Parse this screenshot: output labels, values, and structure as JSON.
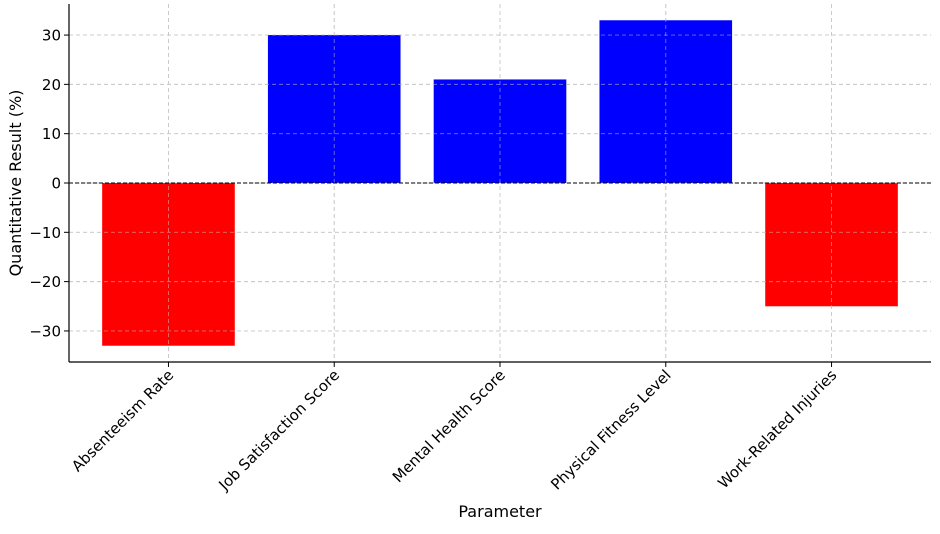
{
  "chart_data": {
    "type": "bar",
    "title": "",
    "xlabel": "Parameter",
    "ylabel": "Quantitative Result (%)",
    "categories": [
      "Absenteeism Rate",
      "Job Satisfaction Score",
      "Mental Health Score",
      "Physical Fitness Level",
      "Work-Related Injuries"
    ],
    "values": [
      -33,
      30,
      21,
      33,
      -25
    ],
    "ylim": [
      -36.3,
      36.3
    ],
    "yticks": [
      -30,
      -20,
      -10,
      0,
      10,
      20,
      30
    ],
    "ytick_labels": [
      "−30",
      "−20",
      "−10",
      "0",
      "10",
      "20",
      "30"
    ],
    "grid": true,
    "zero_line": "dashed",
    "legend": "none"
  },
  "colors": {
    "positive": "#0000ff",
    "negative": "#ff0000",
    "grid": "#c8c8c8",
    "axis": "#000000"
  }
}
